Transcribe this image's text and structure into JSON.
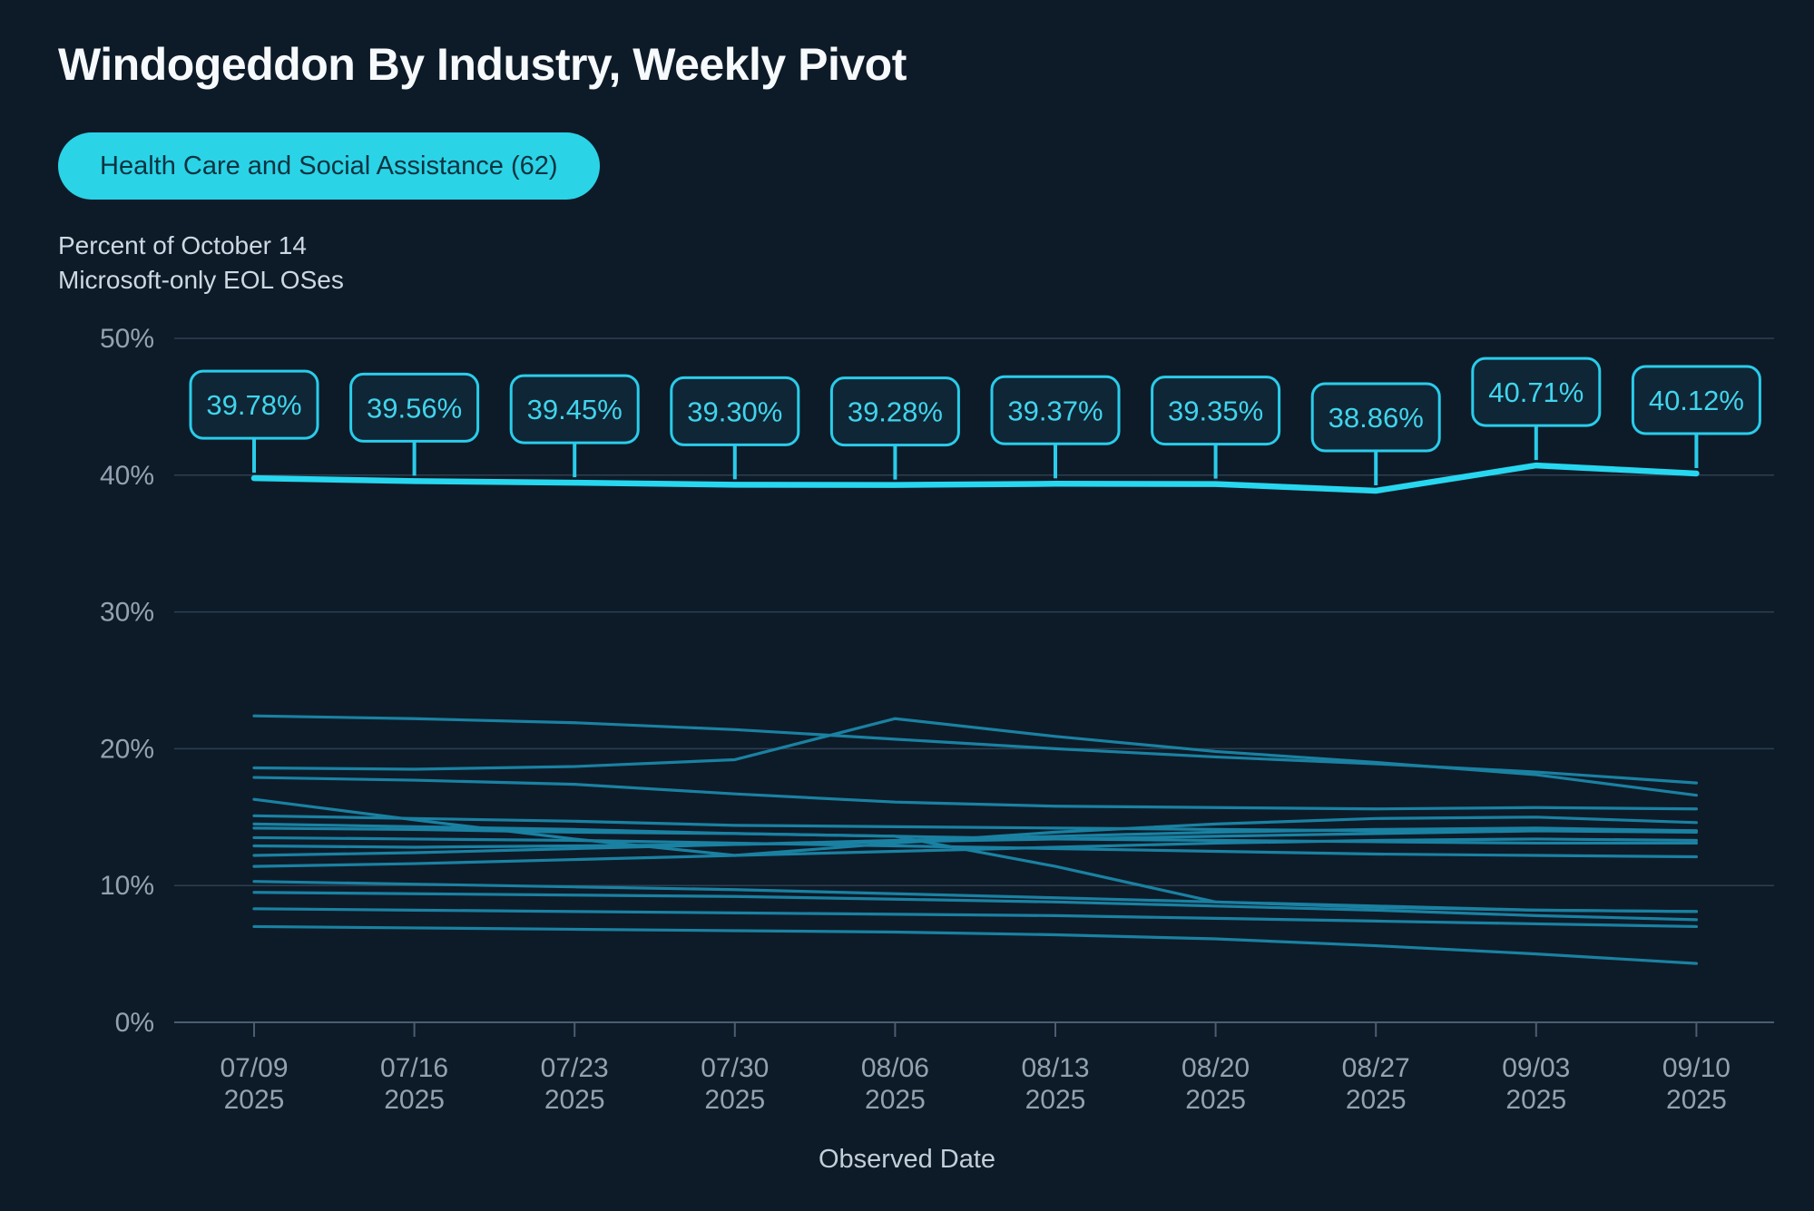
{
  "title": "Windogeddon By Industry, Weekly Pivot",
  "filter_chip": {
    "label": "Health Care and Social Assistance (62)"
  },
  "y_axis_title_lines": [
    "Percent of October 14",
    "Microsoft-only EOL OSes"
  ],
  "x_axis_title": "Observed Date",
  "colors": {
    "background": "#0d1b28",
    "chip_background": "#2bd3e7",
    "chip_text": "#0b3440",
    "highlight_line": "#27d7f0",
    "background_line": "#1a81a2",
    "gridline": "#2e3f50",
    "zero_axis": "#4c5d70",
    "tick_label": "#93a2b1",
    "label_box_border": "#2accea",
    "label_box_fill": "#0f2636",
    "label_text": "#41d4ec"
  },
  "chart_data": {
    "type": "line",
    "title": "Windogeddon By Industry, Weekly Pivot",
    "xlabel": "Observed Date",
    "ylabel": "Percent of October 14 Microsoft-only EOL OSes",
    "ylim": [
      0,
      50
    ],
    "yticks": [
      0,
      10,
      20,
      30,
      40,
      50
    ],
    "ytick_labels": [
      "0%",
      "10%",
      "20%",
      "30%",
      "40%",
      "50%"
    ],
    "grid": true,
    "legend": "none",
    "categories": [
      "07/09",
      "07/16",
      "07/23",
      "07/30",
      "08/06",
      "08/13",
      "08/20",
      "08/27",
      "09/03",
      "09/10"
    ],
    "category_year": "2025",
    "highlight_series": {
      "name": "Health Care and Social Assistance (62)",
      "values": [
        39.78,
        39.56,
        39.45,
        39.3,
        39.28,
        39.37,
        39.35,
        38.86,
        40.71,
        40.12
      ],
      "point_labels": [
        "39.78%",
        "39.56%",
        "39.45%",
        "39.30%",
        "39.28%",
        "39.37%",
        "39.35%",
        "38.86%",
        "40.71%",
        "40.12%"
      ]
    },
    "background_series": [
      {
        "values": [
          22.4,
          22.2,
          21.9,
          21.4,
          20.7,
          20.0,
          19.4,
          18.9,
          18.3,
          17.5
        ]
      },
      {
        "values": [
          18.6,
          18.5,
          18.7,
          19.2,
          22.2,
          20.9,
          19.8,
          19.0,
          18.1,
          16.6
        ]
      },
      {
        "values": [
          17.9,
          17.7,
          17.4,
          16.7,
          16.1,
          15.8,
          15.7,
          15.6,
          15.7,
          15.6
        ]
      },
      {
        "values": [
          16.3,
          14.8,
          13.4,
          12.2,
          13.1,
          13.9,
          14.5,
          14.9,
          15.0,
          14.6
        ]
      },
      {
        "values": [
          15.1,
          14.9,
          14.7,
          14.4,
          14.3,
          14.2,
          14.1,
          14.0,
          14.0,
          14.0
        ]
      },
      {
        "values": [
          14.5,
          14.3,
          14.1,
          13.8,
          13.6,
          13.4,
          13.3,
          13.2,
          13.1,
          13.1
        ]
      },
      {
        "values": [
          14.2,
          14.1,
          13.9,
          13.8,
          13.6,
          11.4,
          8.8,
          8.4,
          8.2,
          8.1
        ]
      },
      {
        "values": [
          13.5,
          13.4,
          13.3,
          13.1,
          12.9,
          12.7,
          12.5,
          12.3,
          12.2,
          12.1
        ]
      },
      {
        "values": [
          12.9,
          12.8,
          12.9,
          13.0,
          13.2,
          13.4,
          13.6,
          13.8,
          14.0,
          13.9
        ]
      },
      {
        "values": [
          12.2,
          12.4,
          12.7,
          13.0,
          13.3,
          13.6,
          13.9,
          14.1,
          14.2,
          14.0
        ]
      },
      {
        "values": [
          11.4,
          11.6,
          11.9,
          12.2,
          12.5,
          12.8,
          13.1,
          13.3,
          13.4,
          13.3
        ]
      },
      {
        "values": [
          10.3,
          10.1,
          9.9,
          9.7,
          9.4,
          9.1,
          8.8,
          8.5,
          8.2,
          8.1
        ]
      },
      {
        "values": [
          9.5,
          9.4,
          9.3,
          9.2,
          9.0,
          8.8,
          8.5,
          8.2,
          7.8,
          7.5
        ]
      },
      {
        "values": [
          8.3,
          8.2,
          8.1,
          8.0,
          7.9,
          7.8,
          7.6,
          7.4,
          7.2,
          7.0
        ]
      },
      {
        "values": [
          7.0,
          6.9,
          6.8,
          6.7,
          6.6,
          6.4,
          6.1,
          5.6,
          5.0,
          4.3
        ]
      }
    ]
  }
}
